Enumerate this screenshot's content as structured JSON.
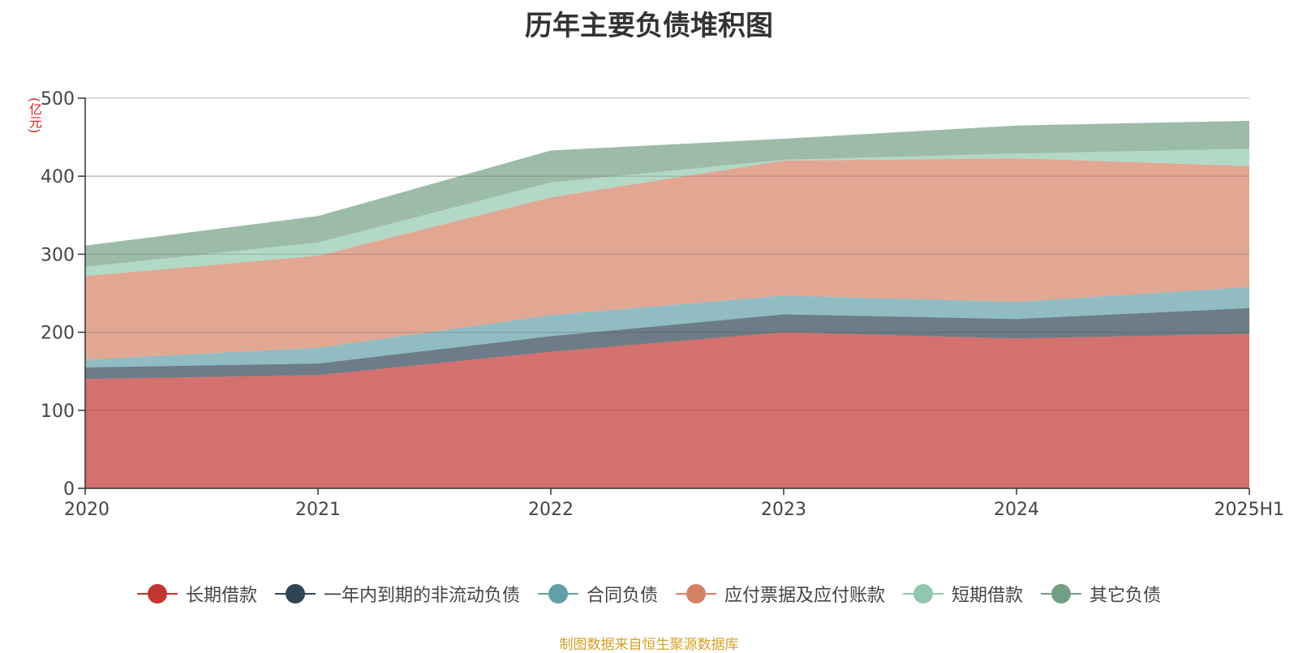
{
  "chart_data": {
    "type": "area",
    "stacked": true,
    "title": "历年主要负债堆积图",
    "unit": "(亿元)",
    "categories": [
      "2020",
      "2021",
      "2022",
      "2023",
      "2024",
      "2025H1"
    ],
    "ylim": [
      0,
      500
    ],
    "yticks": [
      0,
      100,
      200,
      300,
      400,
      500
    ],
    "grid": true,
    "legend_position": "bottom",
    "series": [
      {
        "name": "长期借款",
        "color": "#c23531",
        "values": [
          140,
          145,
          175,
          200,
          192,
          198
        ]
      },
      {
        "name": "一年内到期的非流动负债",
        "color": "#2f4554",
        "values": [
          15,
          15,
          20,
          23,
          25,
          33
        ]
      },
      {
        "name": "合同负债",
        "color": "#61a0a8",
        "values": [
          10,
          20,
          27,
          24,
          22,
          27
        ]
      },
      {
        "name": "应付票据及应付账款",
        "color": "#d48265",
        "values": [
          107,
          118,
          151,
          173,
          184,
          155
        ]
      },
      {
        "name": "短期借款",
        "color": "#91c7ae",
        "values": [
          12,
          17,
          19,
          1,
          6,
          22
        ]
      },
      {
        "name": "其它负债",
        "color": "#749f83",
        "values": [
          27,
          34,
          41,
          27,
          36,
          36
        ]
      }
    ]
  },
  "source_note": "制图数据来自恒生聚源数据库"
}
